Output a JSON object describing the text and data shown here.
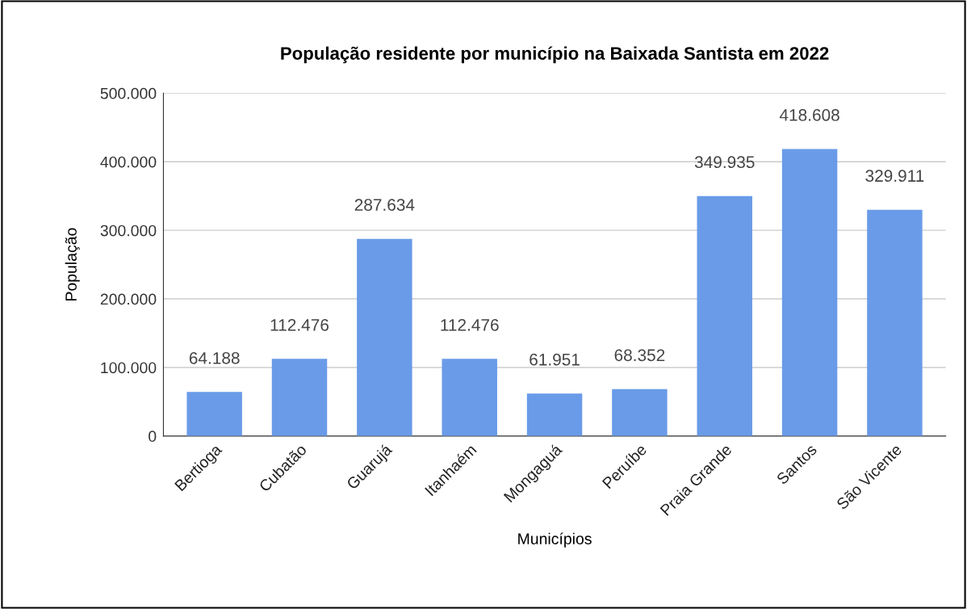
{
  "chart_data": {
    "type": "bar",
    "title": "População residente por município na Baixada Santista em 2022",
    "xlabel": "Municípios",
    "ylabel": "População",
    "categories": [
      "Bertioga",
      "Cubatão",
      "Guarujá",
      "Itanhaém",
      "Mongaguá",
      "Peruíbe",
      "Praia Grande",
      "Santos",
      "São Vicente"
    ],
    "values": [
      64188,
      112476,
      287634,
      112476,
      61951,
      68352,
      349935,
      418608,
      329911
    ],
    "value_labels": [
      "64.188",
      "112.476",
      "287.634",
      "112.476",
      "61.951",
      "68.352",
      "349.935",
      "418.608",
      "329.911"
    ],
    "color": "#6a9be8",
    "ylim": [
      0,
      500000
    ],
    "yticks": [
      0,
      {
        "value": 100000,
        "label": "100.000"
      },
      {
        "value": 200000,
        "label": "200.000"
      },
      {
        "value": 300000,
        "label": "300.000"
      },
      {
        "value": 400000,
        "label": "400.000"
      },
      {
        "value": 500000,
        "label": "500.000"
      }
    ],
    "grid": "y",
    "legend": false
  }
}
